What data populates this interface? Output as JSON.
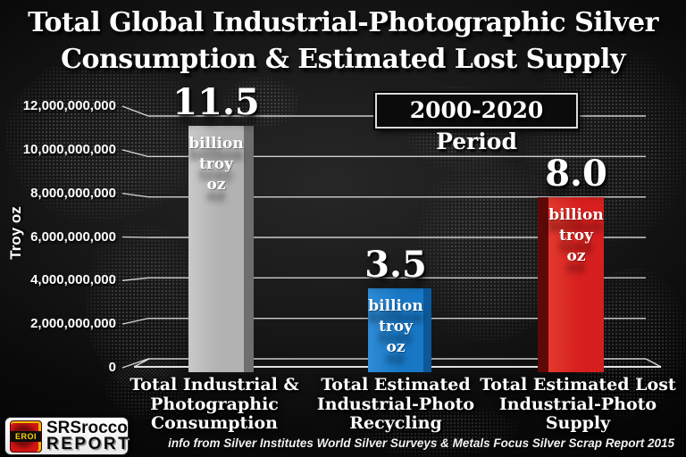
{
  "title": {
    "line1": "Total Global Industrial-Photographic Silver",
    "line2": "Consumption & Estimated Lost Supply"
  },
  "period_box": {
    "label": "2000-2020 Period"
  },
  "chart_data": {
    "type": "bar",
    "title": "Total Global Industrial-Photographic Silver Consumption & Estimated Lost Supply",
    "subtitle": "2000-2020 Period",
    "ylabel": "Troy oz",
    "ylim": [
      0,
      12000000000
    ],
    "grid": true,
    "y_ticks": [
      {
        "value": 12000000000,
        "label": "12,000,000,000"
      },
      {
        "value": 10000000000,
        "label": "10,000,000,000"
      },
      {
        "value": 8000000000,
        "label": "8,000,000,000"
      },
      {
        "value": 6000000000,
        "label": "6,000,000,000"
      },
      {
        "value": 4000000000,
        "label": "4,000,000,000"
      },
      {
        "value": 2000000000,
        "label": "2,000,000,000"
      },
      {
        "value": 0,
        "label": "0"
      }
    ],
    "bars": [
      {
        "category_lines": [
          "Total Industrial &",
          "Photographic",
          "Consumption"
        ],
        "value": 11500000000,
        "value_label": "11.5",
        "unit_lines": [
          "billion",
          "troy oz"
        ],
        "color": "#b2b2b2",
        "color_light": "#c9c9c9",
        "color_dark": "#6e6e6e"
      },
      {
        "category_lines": [
          "Total Estimated",
          "Industrial-Photo",
          "Recycling"
        ],
        "value": 3500000000,
        "value_label": "3.5",
        "unit_lines": [
          "billion",
          "troy oz"
        ],
        "color": "#1878c6",
        "color_light": "#2f8cd6",
        "color_dark": "#0c5898"
      },
      {
        "category_lines": [
          "Total Estimated Lost",
          "Industrial-Photo",
          "Supply"
        ],
        "value": 8000000000,
        "value_label": "8.0",
        "unit_lines": [
          "billion",
          "troy oz"
        ],
        "color": "#d71f1f",
        "color_light": "#e23a2e",
        "color_dark": "#5e0808"
      }
    ]
  },
  "footer": {
    "logo": {
      "eroi_label": "EROI",
      "name_line1": "SRSrocco",
      "name_line2": "REPORT"
    },
    "attribution": "info from Silver Institutes World Silver Surveys & Metals Focus Silver Scrap Report 2015"
  }
}
